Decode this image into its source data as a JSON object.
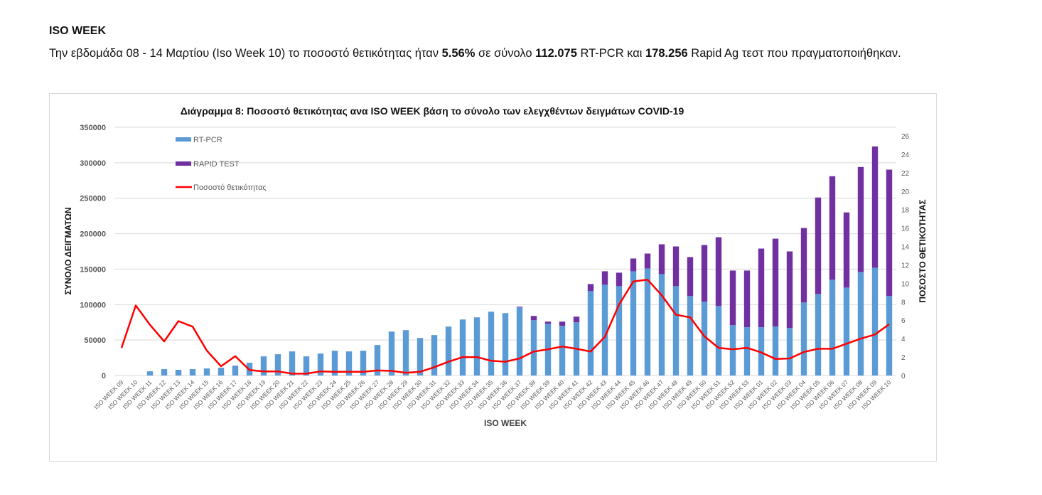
{
  "document": {
    "heading": "ISO WEEK",
    "paragraph": {
      "part1": "Την εβδομάδα 08 - 14 Μαρτίου (Iso Week 10) το ποσοστό θετικότητας ήταν ",
      "rate": "5.56%",
      "part2": " σε σύνολο ",
      "pcr_total": "112.075",
      "part3": " RT-PCR και ",
      "rapid_total": "178.256",
      "part4": " Rapid Ag τεστ που πραγματοποιήθηκαν."
    }
  },
  "colors": {
    "rtpcr": "#5b9bd5",
    "rapid": "#7030a0",
    "line": "#ff0000",
    "grid": "#d9d9d9"
  },
  "chart_data": {
    "type": "bar",
    "title": "Διάγραμμα 8: Ποσοστό  θετικότητας ανα ISO WEEK  βάση το σύνολο των ελεγχθέντων δειγμάτων COVID-19",
    "xlabel": "ISO WEEK",
    "ylabel": "ΣΥΝΟΛΟ ΔΕΙΓΜΑΤΩΝ",
    "y2label": "ΠΟΣΟΣΤΟ ΘΕΤΙΚΟΤΗΤΑΣ",
    "ylim": [
      0,
      350000
    ],
    "y2lim": [
      0,
      26
    ],
    "yticks": [
      "0",
      "50000",
      "100000",
      "150000",
      "200000",
      "250000",
      "300000",
      "350000"
    ],
    "y2ticks": [
      "0",
      "2",
      "4",
      "6",
      "8",
      "10",
      "12",
      "14",
      "16",
      "18",
      "20",
      "22",
      "24",
      "26"
    ],
    "legend_position": "top-left",
    "grid": true,
    "categories": [
      "ISO WEEK 09",
      "ISO WEEK 10",
      "ISO WEEK 11",
      "ISO WEEK 12",
      "ISO WEEK 13",
      "ISO WEEK 14",
      "ISO WEEK 15",
      "ISO WEEK 16",
      "ISO WEEK 17",
      "ISO WEEK 18",
      "ISO WEEK 19",
      "ISO WEEK 20",
      "ISO WEEK 21",
      "ISO WEEK 22",
      "ISO WEEK 23",
      "ISO WEEK 24",
      "ISO WEEK 25",
      "ISO WEEK 26",
      "ISO WEEK 27",
      "ISO WEEK 28",
      "ISO WEEK 29",
      "ISO WEEK 30",
      "ISO WEEK 31",
      "ISO WEEK 32",
      "ISO WEEK 33",
      "ISO WEEK 34",
      "ISO WEEK 35",
      "ISO WEEK 36",
      "ISO WEEK 37",
      "ISO WEEK 38",
      "ISO WEEK 39",
      "ISO WEEK 40",
      "ISO WEEK 41",
      "ISO WEEK 42",
      "ISO WEEK 43",
      "ISO WEEK 44",
      "ISO WEEK 45",
      "ISO WEEK 46",
      "ISO WEEK 47",
      "ISO WEEK 48",
      "ISO WEEK 49",
      "ISO WEEK 50",
      "ISO WEEK 51",
      "ISO WEEK 52",
      "ISO WEEK 53",
      "ISO WEEK 01",
      "ISO WEEK 02",
      "ISO WEEK 03",
      "ISO WEEK 04",
      "ISO WEEK 05",
      "ISO WEEK 06",
      "ISO WEEK 07",
      "ISO WEEK 08",
      "ISO WEEK 09",
      "ISO WEEK 10"
    ],
    "series": [
      {
        "name": "RT-PCR",
        "type": "bar",
        "axis": "left",
        "values": [
          0,
          0,
          6000,
          9000,
          8000,
          9000,
          10000,
          11000,
          14000,
          18000,
          27000,
          30000,
          34000,
          27000,
          31000,
          35000,
          34000,
          35000,
          43000,
          62000,
          64000,
          53000,
          57000,
          69000,
          79000,
          82000,
          90000,
          88000,
          96000,
          78000,
          73000,
          70000,
          75000,
          119000,
          128000,
          126000,
          147000,
          151000,
          143000,
          126000,
          112000,
          104000,
          98000,
          71000,
          68000,
          68000,
          69000,
          67000,
          103000,
          115000,
          135000,
          124000,
          146000,
          152000,
          112075
        ]
      },
      {
        "name": "RAPID TEST",
        "type": "bar",
        "axis": "left",
        "values": [
          0,
          0,
          0,
          0,
          0,
          0,
          0,
          0,
          0,
          0,
          0,
          0,
          0,
          0,
          0,
          0,
          0,
          0,
          0,
          0,
          0,
          0,
          0,
          0,
          0,
          0,
          0,
          0,
          1000,
          6000,
          3000,
          6000,
          8000,
          10000,
          19000,
          19000,
          18000,
          21000,
          42000,
          56000,
          55000,
          80000,
          97000,
          77000,
          80000,
          111000,
          124000,
          108000,
          105000,
          136000,
          146000,
          106000,
          148000,
          171000,
          178256
        ]
      },
      {
        "name": "Ποσοστό θετικότητας",
        "type": "line",
        "axis": "right",
        "values": [
          3.0,
          7.6,
          5.5,
          3.7,
          5.9,
          5.3,
          2.7,
          1.0,
          2.1,
          0.6,
          0.45,
          0.45,
          0.2,
          0.2,
          0.45,
          0.4,
          0.4,
          0.4,
          0.55,
          0.5,
          0.3,
          0.4,
          0.9,
          1.5,
          2.0,
          2.0,
          1.6,
          1.5,
          1.85,
          2.6,
          2.85,
          3.15,
          2.9,
          2.6,
          4.2,
          7.7,
          10.2,
          10.4,
          8.7,
          6.6,
          6.3,
          4.25,
          3.0,
          2.85,
          3.0,
          2.5,
          1.8,
          1.85,
          2.55,
          2.9,
          2.9,
          3.45,
          4.0,
          4.45,
          5.56
        ]
      }
    ]
  }
}
